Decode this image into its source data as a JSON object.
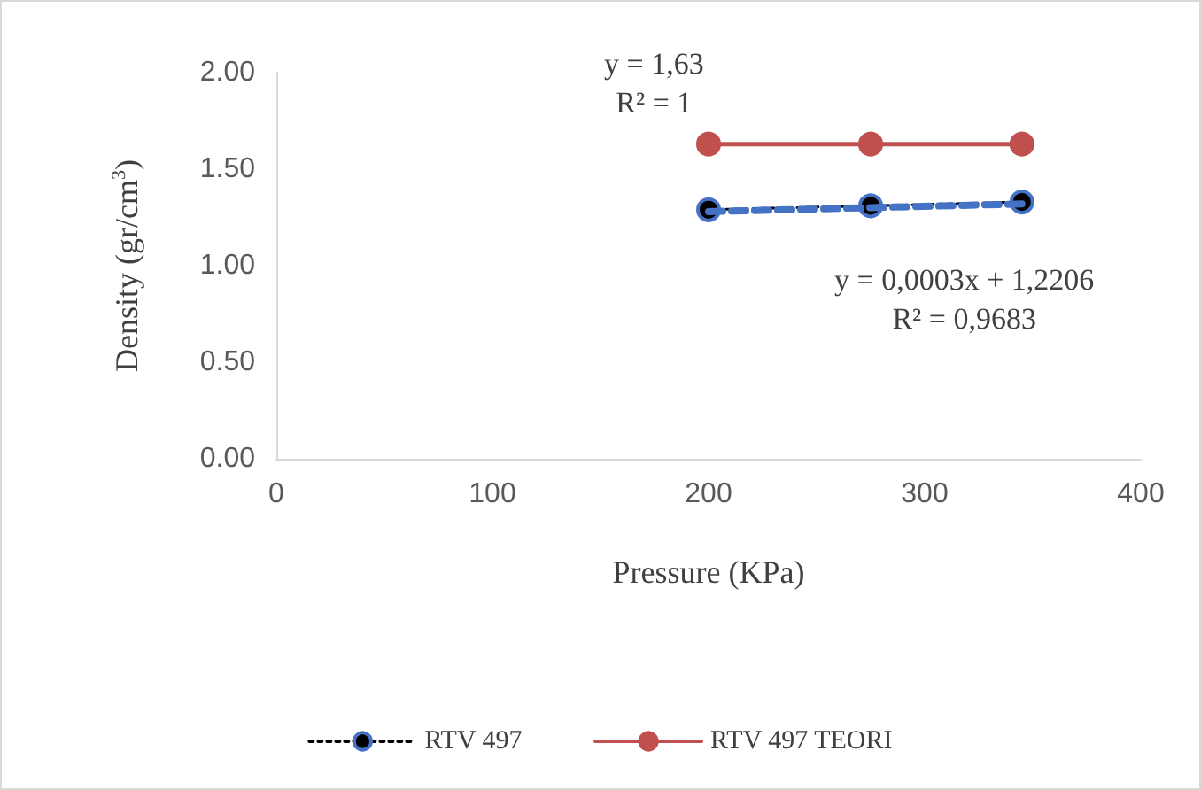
{
  "chart_data": {
    "type": "line",
    "xlabel": "Pressure (KPa)",
    "ylabel": "Density (gr/cm$^{3}$)",
    "x": [
      200,
      275,
      345
    ],
    "series": [
      {
        "name": "RTV 497",
        "color": "#000000",
        "values": [
          1.29,
          1.31,
          1.33
        ],
        "line_style": "dotted",
        "marker": "circle"
      },
      {
        "name": "RTV 497 TEORI",
        "color": "#c0504d",
        "values": [
          1.63,
          1.63,
          1.63
        ],
        "line_style": "solid",
        "marker": "circle"
      },
      {
        "color": "#4472c4",
        "x": [
          200,
          345
        ],
        "values": [
          1.28,
          1.32
        ],
        "line_style": "dashed"
      }
    ],
    "xlim": [
      0,
      400
    ],
    "xticks": [
      0,
      100,
      200,
      300,
      400
    ],
    "ylim": [
      0,
      2
    ],
    "yticks": [
      {
        "value": 0,
        "label": "0.00"
      },
      {
        "value": 0.5,
        "label": "0.50"
      },
      {
        "value": 1,
        "label": "1.00"
      },
      {
        "value": 1.5,
        "label": "1.50"
      },
      {
        "value": 2,
        "label": "2.00"
      }
    ],
    "annotations": [
      "y = 1,63\nR² = 1",
      "y = 0,0003x + 1,2206\nR² = 0,9683"
    ],
    "grid": false,
    "legend": "bottom"
  }
}
